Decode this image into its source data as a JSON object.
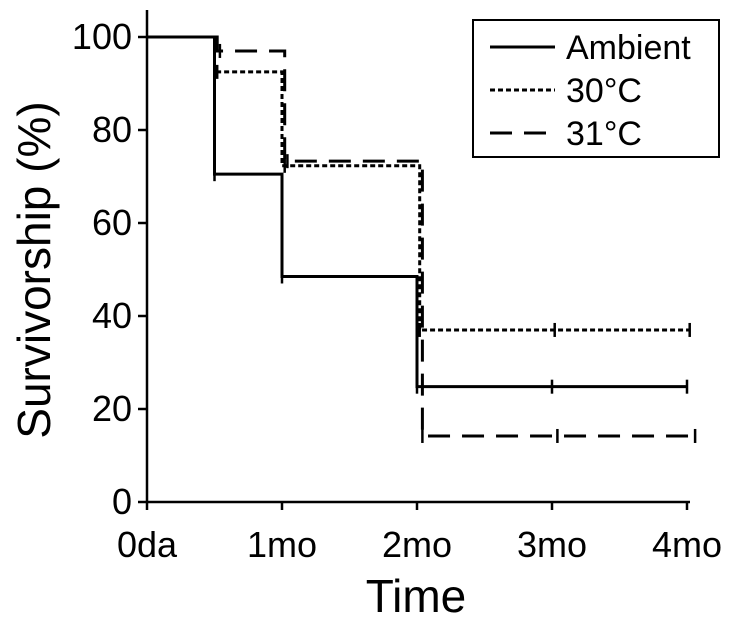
{
  "chart_data": {
    "type": "line",
    "subtype": "step",
    "title": "",
    "xlabel": "Time",
    "ylabel": "Survivorship (%)",
    "x_categories": [
      "0da",
      "1mo",
      "2mo",
      "3mo",
      "4mo"
    ],
    "xlim": [
      0,
      4
    ],
    "ylim": [
      0,
      100
    ],
    "yticks": [
      "0",
      "20",
      "40",
      "60",
      "80",
      "100"
    ],
    "grid": false,
    "legend_position": "top-right",
    "series": [
      {
        "name": "Ambient",
        "style": "solid",
        "steps": [
          [
            0,
            100
          ],
          [
            0.5,
            70.5
          ],
          [
            1,
            48.5
          ],
          [
            2,
            24.8
          ],
          [
            4,
            24.8
          ]
        ],
        "censor_marks": [
          [
            0.5,
            70.5
          ],
          [
            1,
            48.5
          ],
          [
            2,
            24.8
          ],
          [
            3,
            24.8
          ],
          [
            4,
            24.8
          ]
        ]
      },
      {
        "name": "30°C",
        "style": "dotted",
        "steps": [
          [
            0,
            100
          ],
          [
            0.5,
            92.5
          ],
          [
            1,
            72.3
          ],
          [
            2.02,
            37
          ],
          [
            4.02,
            37
          ]
        ],
        "censor_marks": [
          [
            0.52,
            92.5
          ],
          [
            1.02,
            72.3
          ],
          [
            2.02,
            37
          ],
          [
            3.02,
            37
          ],
          [
            4.02,
            37
          ]
        ]
      },
      {
        "name": "31°C",
        "style": "dashed",
        "steps": [
          [
            0,
            100
          ],
          [
            0.52,
            97
          ],
          [
            1.02,
            73.3
          ],
          [
            2.04,
            14.2
          ],
          [
            4.06,
            14.2
          ]
        ],
        "censor_marks": [
          [
            0.54,
            97
          ],
          [
            1.04,
            73.3
          ],
          [
            2.04,
            14.2
          ],
          [
            3.04,
            14.2
          ],
          [
            4.06,
            14.2
          ]
        ]
      }
    ]
  }
}
